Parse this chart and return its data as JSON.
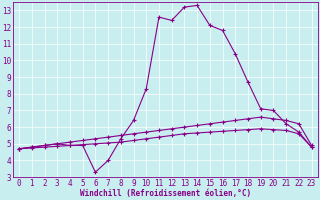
{
  "xlabel": "Windchill (Refroidissement éolien,°C)",
  "bg_color": "#c8eef0",
  "line_color": "#880088",
  "xmin": -0.5,
  "xmax": 23.5,
  "ymin": 3,
  "ymax": 13.5,
  "yticks": [
    3,
    4,
    5,
    6,
    7,
    8,
    9,
    10,
    11,
    12,
    13
  ],
  "xticks": [
    0,
    1,
    2,
    3,
    4,
    5,
    6,
    7,
    8,
    9,
    10,
    11,
    12,
    13,
    14,
    15,
    16,
    17,
    18,
    19,
    20,
    21,
    22,
    23
  ],
  "series1_x": [
    0,
    1,
    2,
    3,
    4,
    5,
    6,
    7,
    8,
    9,
    10,
    11,
    12,
    13,
    14,
    15,
    16,
    17,
    18,
    19,
    20,
    21,
    22,
    23
  ],
  "series1_y": [
    4.7,
    4.8,
    4.9,
    5.0,
    4.9,
    4.9,
    3.3,
    4.0,
    5.3,
    6.4,
    8.3,
    12.6,
    12.4,
    13.2,
    13.3,
    12.1,
    11.8,
    10.4,
    8.7,
    7.1,
    7.0,
    6.2,
    5.7,
    4.8
  ],
  "series2_x": [
    0,
    1,
    2,
    3,
    4,
    5,
    6,
    7,
    8,
    9,
    10,
    11,
    12,
    13,
    14,
    15,
    16,
    17,
    18,
    19,
    20,
    21,
    22,
    23
  ],
  "series2_y": [
    4.7,
    4.8,
    4.9,
    5.0,
    5.1,
    5.2,
    5.3,
    5.4,
    5.5,
    5.6,
    5.7,
    5.8,
    5.9,
    6.0,
    6.1,
    6.2,
    6.3,
    6.4,
    6.5,
    6.6,
    6.5,
    6.4,
    6.2,
    4.9
  ],
  "series3_x": [
    0,
    1,
    2,
    3,
    4,
    5,
    6,
    7,
    8,
    9,
    10,
    11,
    12,
    13,
    14,
    15,
    16,
    17,
    18,
    19,
    20,
    21,
    22,
    23
  ],
  "series3_y": [
    4.7,
    4.75,
    4.8,
    4.85,
    4.9,
    4.95,
    5.0,
    5.05,
    5.1,
    5.2,
    5.3,
    5.4,
    5.5,
    5.6,
    5.65,
    5.7,
    5.75,
    5.8,
    5.85,
    5.9,
    5.85,
    5.8,
    5.6,
    4.8
  ],
  "xlabel_fontsize": 5.5,
  "tick_fontsize": 5.5,
  "linewidth": 0.8,
  "markersize": 3.0
}
